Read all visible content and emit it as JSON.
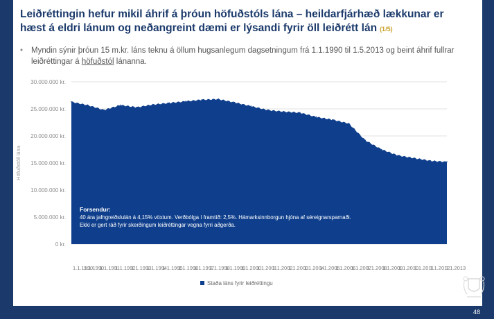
{
  "slide": {
    "title_line1": "Leiðréttingin hefur mikil áhrif á þróun höfuðstóls lána – heildarfjárhæð lækkunar er",
    "title_line2": "hæst á eldri lánum og neðangreint dæmi er lýsandi fyrir öll leiðrétt lán",
    "page_tag": "(1/5)",
    "bullet_pre": "Myndin sýnir þróun 15 m.kr. láns teknu á öllum hugsanlegum dagsetningum frá 1.1.1990 til 1.5.2013 og beint áhrif fullrar leiðréttingar á ",
    "bullet_underlined": "höfuðstól",
    "bullet_post": " lánanna.",
    "page_number": "48"
  },
  "colors": {
    "navy": "#1b3a6b",
    "area": "#0f3f8c",
    "gold": "#c9a227"
  },
  "chart_data": {
    "type": "area",
    "title": "",
    "ylabel": "Höfuðstóll lána",
    "xlabel": "",
    "ylim": [
      0,
      30000000
    ],
    "yticks": [
      0,
      5000000,
      10000000,
      15000000,
      20000000,
      25000000,
      30000000
    ],
    "ytick_labels": [
      "0 kr.",
      "5.000.000 kr.",
      "10.000.000 kr.",
      "15.000.000 kr.",
      "20.000.000 kr.",
      "25.000.000 kr.",
      "30.000.000 kr."
    ],
    "x_start_label": "1.1.1990",
    "x_years": [
      1990,
      1991,
      1992,
      1993,
      1994,
      1995,
      1996,
      1997,
      1998,
      1999,
      2000,
      2001,
      2002,
      2003,
      2004,
      2005,
      2006,
      2007,
      2008,
      2009,
      2010,
      2011,
      2012,
      2013
    ],
    "series": [
      {
        "name": "Staða láns fyrir leiðréttingu",
        "values": [
          26300000,
          25700000,
          24800000,
          25700000,
          25300000,
          25800000,
          26100000,
          26400000,
          26700000,
          26800000,
          26200000,
          25500000,
          24800000,
          24500000,
          24300000,
          23500000,
          23000000,
          22300000,
          19200000,
          17500000,
          16400000,
          15900000,
          15400000,
          15200000
        ]
      }
    ],
    "legend_label": "Staða láns fyrir leiðréttingu",
    "annotation": {
      "heading": "Forsendur:",
      "line1": "40 ára jafngreiðslulán á 4,15% vöxtum. Verðbólga í framtíð: 2,5%.  Hámarksinnborgun hjóna af séreignarsparnaði.",
      "line2": "Ekki er gert ráð fyrir skerðingum leiðréttingar vegna fyrri aðgerða."
    }
  }
}
